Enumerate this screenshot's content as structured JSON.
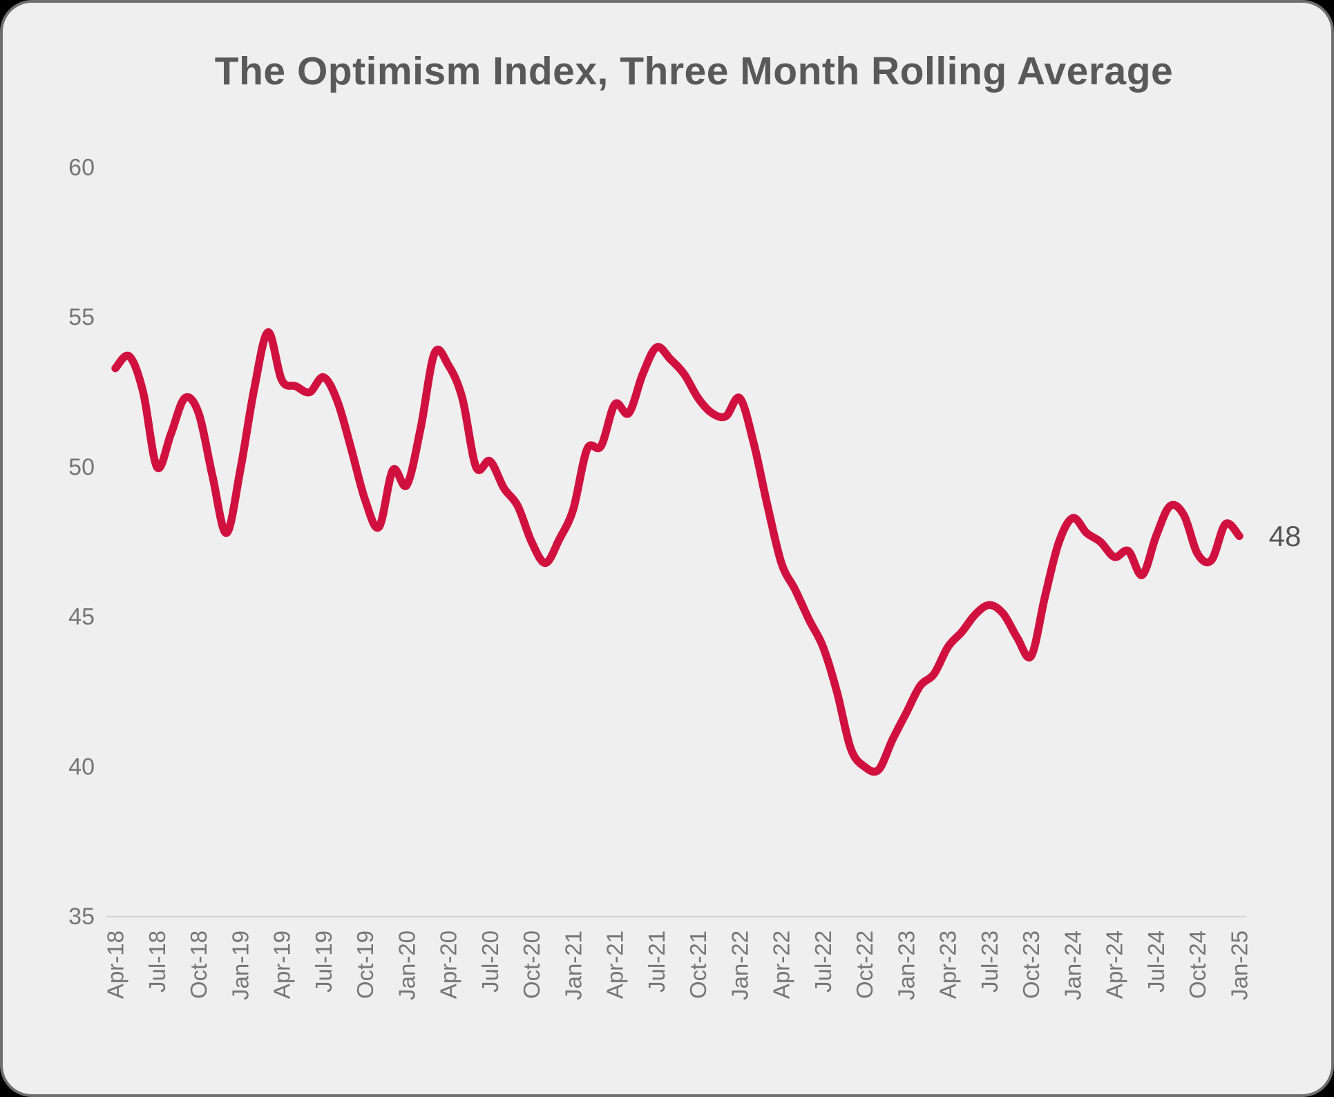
{
  "card": {
    "title": "The Optimism Index, Three Month Rolling Average",
    "end_label": "48"
  },
  "colors": {
    "outer_background": "#000000",
    "card_background": "#f0efef",
    "card_border": "#6f6f6f",
    "line": "#d01140",
    "title_text": "#595959",
    "tick_text": "#767676",
    "axis_line": "#d8d8d8",
    "end_label_text": "#555555"
  },
  "chart_data": {
    "type": "line",
    "title": "The Optimism Index, Three Month Rolling Average",
    "xlabel": "",
    "ylabel": "",
    "grid": false,
    "legend": false,
    "y_ticks": [
      60,
      55,
      50,
      45,
      40,
      35
    ],
    "ylim": [
      35,
      62
    ],
    "x_tick_step": 3,
    "x_tick_labels": [
      "Apr-18",
      "Jul-18",
      "Oct-18",
      "Jan-19",
      "Apr-19",
      "Jul-19",
      "Oct-19",
      "Jan-20",
      "Apr-20",
      "Jul-20",
      "Oct-20",
      "Jan-21",
      "Apr-21",
      "Jul-21",
      "Oct-21",
      "Jan-22",
      "Apr-22",
      "Jul-22",
      "Oct-22",
      "Jan-23",
      "Apr-23",
      "Jul-23",
      "Oct-23",
      "Jan-24",
      "Apr-24",
      "Jul-24",
      "Oct-24",
      "Jan-25"
    ],
    "x": [
      "Apr-18",
      "May-18",
      "Jun-18",
      "Jul-18",
      "Aug-18",
      "Sep-18",
      "Oct-18",
      "Nov-18",
      "Dec-18",
      "Jan-19",
      "Feb-19",
      "Mar-19",
      "Apr-19",
      "May-19",
      "Jun-19",
      "Jul-19",
      "Aug-19",
      "Sep-19",
      "Oct-19",
      "Nov-19",
      "Dec-19",
      "Jan-20",
      "Feb-20",
      "Mar-20",
      "Apr-20",
      "May-20",
      "Jun-20",
      "Jul-20",
      "Aug-20",
      "Sep-20",
      "Oct-20",
      "Nov-20",
      "Dec-20",
      "Jan-21",
      "Feb-21",
      "Mar-21",
      "Apr-21",
      "May-21",
      "Jun-21",
      "Jul-21",
      "Aug-21",
      "Sep-21",
      "Oct-21",
      "Nov-21",
      "Dec-21",
      "Jan-22",
      "Feb-22",
      "Mar-22",
      "Apr-22",
      "May-22",
      "Jun-22",
      "Jul-22",
      "Aug-22",
      "Sep-22",
      "Oct-22",
      "Nov-22",
      "Dec-22",
      "Jan-23",
      "Feb-23",
      "Mar-23",
      "Apr-23",
      "May-23",
      "Jun-23",
      "Jul-23",
      "Aug-23",
      "Sep-23",
      "Oct-23",
      "Nov-23",
      "Dec-23",
      "Jan-24",
      "Feb-24",
      "Mar-24",
      "Apr-24",
      "May-24",
      "Jun-24",
      "Jul-24",
      "Aug-24",
      "Sep-24",
      "Oct-24",
      "Nov-24",
      "Dec-24",
      "Jan-25"
    ],
    "values": [
      53.3,
      53.7,
      52.5,
      50.0,
      51.1,
      52.3,
      51.8,
      49.7,
      47.8,
      49.9,
      52.6,
      54.5,
      52.9,
      52.7,
      52.5,
      53.0,
      52.2,
      50.6,
      48.9,
      48.0,
      49.9,
      49.4,
      51.3,
      53.8,
      53.4,
      52.3,
      50.0,
      50.2,
      49.3,
      48.7,
      47.5,
      46.8,
      47.6,
      48.6,
      50.6,
      50.7,
      52.1,
      51.8,
      53.1,
      54.0,
      53.6,
      53.1,
      52.3,
      51.8,
      51.7,
      52.3,
      50.8,
      48.7,
      46.8,
      45.9,
      44.9,
      44.0,
      42.5,
      40.6,
      40.0,
      39.9,
      40.9,
      41.8,
      42.7,
      43.1,
      44.0,
      44.5,
      45.1,
      45.4,
      45.1,
      44.3,
      43.7,
      45.7,
      47.5,
      48.3,
      47.8,
      47.5,
      47.0,
      47.2,
      46.4,
      47.7,
      48.7,
      48.4,
      47.1,
      46.9,
      48.1,
      47.7
    ],
    "end_label": "48"
  }
}
